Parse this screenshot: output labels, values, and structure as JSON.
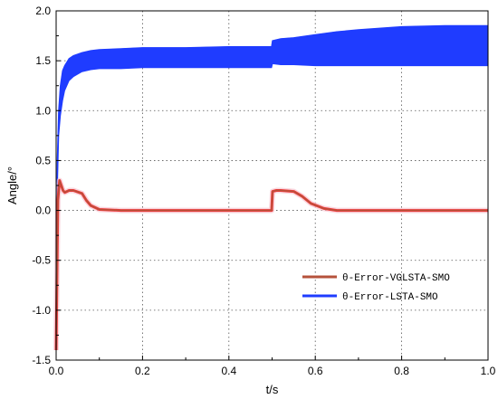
{
  "chart_data": {
    "type": "line",
    "title": "",
    "xlabel": "t/s",
    "ylabel": "Angle/°",
    "xlim": [
      0.0,
      1.0
    ],
    "ylim": [
      -1.5,
      2.0
    ],
    "x_ticks": [
      0.0,
      0.2,
      0.4,
      0.6,
      0.8,
      1.0
    ],
    "x_tick_labels": [
      "0.0",
      "0.2",
      "0.4",
      "0.6",
      "0.8",
      "1.0"
    ],
    "y_ticks": [
      -1.5,
      -1.0,
      -0.5,
      0.0,
      0.5,
      1.0,
      1.5,
      2.0
    ],
    "y_tick_labels": [
      "-1.5",
      "-1.0",
      "-0.5",
      "0.0",
      "0.5",
      "1.0",
      "1.5",
      "2.0"
    ],
    "grid": true,
    "legend_position": "lower-right",
    "series": [
      {
        "name": "θ-Error-LSTA-SMO",
        "color": "#1f3cff",
        "x": [
          0.0,
          0.003,
          0.006,
          0.01,
          0.015,
          0.02,
          0.03,
          0.04,
          0.06,
          0.08,
          0.1,
          0.15,
          0.2,
          0.3,
          0.4,
          0.499,
          0.501,
          0.52,
          0.55,
          0.6,
          0.65,
          0.7,
          0.8,
          0.9,
          1.0
        ],
        "upper": [
          -1.4,
          0.5,
          1.0,
          1.25,
          1.4,
          1.45,
          1.52,
          1.55,
          1.58,
          1.6,
          1.61,
          1.62,
          1.63,
          1.63,
          1.64,
          1.64,
          1.7,
          1.72,
          1.73,
          1.76,
          1.79,
          1.81,
          1.84,
          1.85,
          1.85
        ],
        "lower": [
          -1.4,
          0.2,
          0.75,
          0.95,
          1.1,
          1.2,
          1.3,
          1.34,
          1.39,
          1.41,
          1.42,
          1.42,
          1.43,
          1.43,
          1.43,
          1.43,
          1.47,
          1.46,
          1.46,
          1.45,
          1.45,
          1.45,
          1.45,
          1.45,
          1.45
        ]
      },
      {
        "name": "θ-Error-VGLSTA-SMO",
        "color": "#b5523b",
        "x": [
          0.0,
          0.004,
          0.008,
          0.012,
          0.016,
          0.02,
          0.03,
          0.04,
          0.06,
          0.07,
          0.08,
          0.1,
          0.15,
          0.2,
          0.3,
          0.4,
          0.499,
          0.501,
          0.51,
          0.52,
          0.55,
          0.57,
          0.59,
          0.62,
          0.65,
          0.7,
          0.8,
          0.9,
          1.0
        ],
        "y": [
          -1.4,
          0.1,
          0.3,
          0.25,
          0.2,
          0.18,
          0.2,
          0.2,
          0.17,
          0.1,
          0.05,
          0.01,
          0.0,
          0.0,
          0.0,
          0.0,
          0.0,
          0.19,
          0.2,
          0.2,
          0.19,
          0.14,
          0.07,
          0.02,
          0.0,
          0.0,
          0.0,
          0.0,
          0.0
        ]
      }
    ]
  }
}
